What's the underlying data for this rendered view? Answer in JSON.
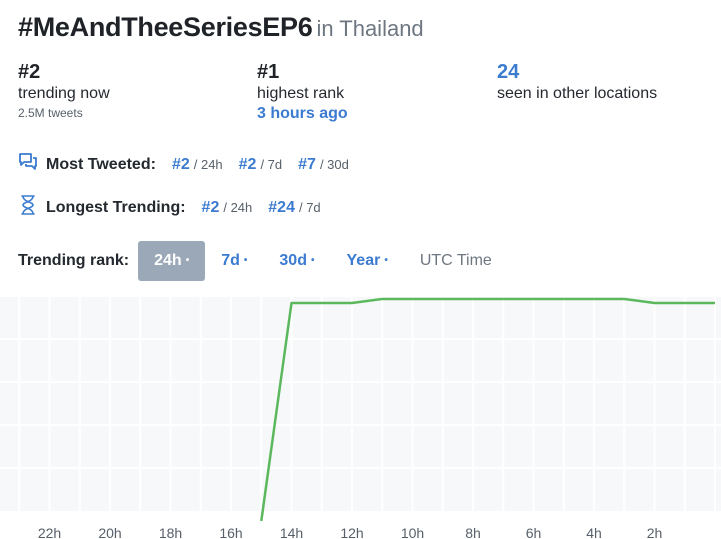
{
  "header": {
    "hashtag": "#MeAndTheeSeriesEP6",
    "location": "in Thailand"
  },
  "stats": {
    "trending_now": {
      "rank": "#2",
      "label": "trending now",
      "tweets": "2.5M tweets"
    },
    "highest_rank": {
      "rank": "#1",
      "label": "highest rank",
      "when": "3 hours ago"
    },
    "other_locations": {
      "count": "24",
      "label": "seen in other locations"
    }
  },
  "most_tweeted": {
    "label": "Most Tweeted:",
    "items": [
      {
        "rank": "#2",
        "period": "/ 24h"
      },
      {
        "rank": "#2",
        "period": "/ 7d"
      },
      {
        "rank": "#7",
        "period": "/ 30d"
      }
    ]
  },
  "longest_trending": {
    "label": "Longest Trending:",
    "items": [
      {
        "rank": "#2",
        "period": "/ 24h"
      },
      {
        "rank": "#24",
        "period": "/ 7d"
      }
    ]
  },
  "trending_rank": {
    "label": "Trending rank:",
    "options": [
      "24h",
      "7d",
      "30d",
      "Year"
    ],
    "dot": "•",
    "active": "24h",
    "timezone": "UTC Time"
  },
  "colors": {
    "line": "#5cb85c",
    "accent": "#3b7bd0",
    "active_tab": "#9aa8b8",
    "grid": "#e9ecef"
  },
  "icons": {
    "most_tweeted": "chat-bubbles-icon",
    "longest_trending": "hourglass-icon"
  },
  "chart_data": {
    "type": "line",
    "x_axis": "hours ago",
    "x_ticks": [
      "22h",
      "20h",
      "18h",
      "16h",
      "14h",
      "12h",
      "10h",
      "8h",
      "6h",
      "4h",
      "2h"
    ],
    "x_tick_values": [
      22,
      20,
      18,
      16,
      14,
      12,
      10,
      8,
      6,
      4,
      2
    ],
    "x_range": [
      24,
      0
    ],
    "y_axis": "rank (top = #1)",
    "grid": true,
    "legend": "none",
    "series": [
      {
        "points": [
          {
            "x": 15,
            "y": 6
          },
          {
            "x": 14,
            "y": 2
          },
          {
            "x": 12,
            "y": 2
          },
          {
            "x": 11,
            "y": 1
          },
          {
            "x": 3,
            "y": 1
          },
          {
            "x": 2,
            "y": 2
          },
          {
            "x": 0,
            "y": 2
          }
        ]
      }
    ]
  }
}
